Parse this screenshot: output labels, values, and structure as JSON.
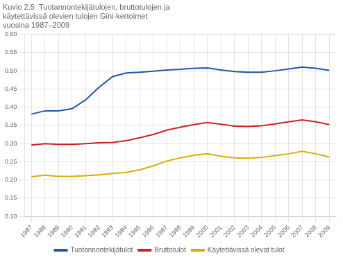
{
  "chart_data": {
    "type": "line",
    "title": "Kuvio 2.5  Tuotannontekijätulojen, bruttotulojen ja\nkäytettävissä olevien tulojen Gini-kertoimet\nvuosina 1987–2009",
    "x": [
      1987,
      1988,
      1989,
      1990,
      1991,
      1992,
      1993,
      1994,
      1995,
      1996,
      1997,
      1998,
      1999,
      2000,
      2001,
      2002,
      2003,
      2004,
      2005,
      2006,
      2007,
      2008,
      2009
    ],
    "series": [
      {
        "name": "Tuotannontekijätulot",
        "color": "#2255aa",
        "values": [
          0.381,
          0.39,
          0.39,
          0.396,
          0.42,
          0.455,
          0.484,
          0.494,
          0.496,
          0.499,
          0.502,
          0.504,
          0.507,
          0.508,
          0.502,
          0.498,
          0.496,
          0.496,
          0.5,
          0.505,
          0.51,
          0.507,
          0.501
        ]
      },
      {
        "name": "Bruttotulot",
        "color": "#cc2222",
        "values": [
          0.296,
          0.3,
          0.298,
          0.298,
          0.3,
          0.302,
          0.303,
          0.308,
          0.316,
          0.325,
          0.337,
          0.345,
          0.352,
          0.358,
          0.353,
          0.348,
          0.347,
          0.349,
          0.354,
          0.36,
          0.365,
          0.36,
          0.352
        ]
      },
      {
        "name": "Käytettävissä olevat tulot",
        "color": "#ddaa00",
        "values": [
          0.209,
          0.213,
          0.21,
          0.21,
          0.212,
          0.214,
          0.218,
          0.221,
          0.228,
          0.239,
          0.252,
          0.261,
          0.268,
          0.272,
          0.265,
          0.261,
          0.26,
          0.262,
          0.267,
          0.272,
          0.279,
          0.272,
          0.263
        ]
      }
    ],
    "xlim": [
      1986.5,
      2009.5
    ],
    "xticks": [
      1987,
      1988,
      1989,
      1990,
      1991,
      1992,
      1993,
      1994,
      1995,
      1996,
      1997,
      1998,
      1999,
      2000,
      2001,
      2002,
      2003,
      2004,
      2005,
      2006,
      2007,
      2008,
      2009
    ],
    "ylim": [
      0.1,
      0.6
    ],
    "yticks": [
      {
        "value": 0.1,
        "label": "0.10"
      },
      0.15,
      {
        "value": 0.2,
        "label": "0.20"
      },
      0.25,
      {
        "value": 0.3,
        "label": "0.30"
      },
      0.35,
      {
        "value": 0.4,
        "label": "0.40"
      },
      0.45,
      {
        "value": 0.5,
        "label": "0.50"
      },
      0.55,
      {
        "value": 0.6,
        "label": "0.60"
      }
    ],
    "grid": true,
    "legend": "bottom"
  }
}
